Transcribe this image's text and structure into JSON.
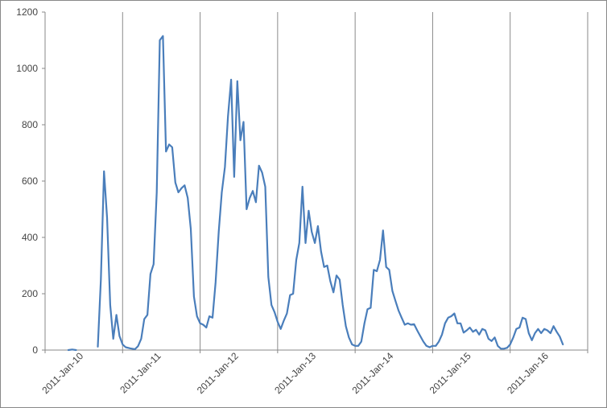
{
  "chart_data": {
    "type": "line",
    "title": "",
    "xlabel": "",
    "ylabel": "",
    "ylim": [
      0,
      1200
    ],
    "y_ticks": [
      "0",
      "200",
      "400",
      "600",
      "800",
      "1000",
      "1200"
    ],
    "x_ticks": [
      "2011-Jan-10",
      "2011-Jan-11",
      "2011-Jan-12",
      "2011-Jan-13",
      "2011-Jan-14",
      "2011-Jan-15",
      "2011-Jan-16"
    ],
    "grid": "vertical",
    "legend": "none",
    "line_color": "#4a7ebb",
    "segments": [
      [
        [
          0.3,
          0
        ],
        [
          0.35,
          2
        ],
        [
          0.4,
          0
        ]
      ],
      [
        [
          0.68,
          12
        ],
        [
          0.72,
          250
        ],
        [
          0.76,
          635
        ],
        [
          0.8,
          470
        ],
        [
          0.84,
          160
        ],
        [
          0.88,
          40
        ],
        [
          0.92,
          125
        ],
        [
          0.96,
          50
        ],
        [
          1.0,
          20
        ],
        [
          1.04,
          10
        ],
        [
          1.1,
          6
        ],
        [
          1.16,
          3
        ],
        [
          1.2,
          14
        ],
        [
          1.24,
          40
        ],
        [
          1.28,
          110
        ],
        [
          1.32,
          125
        ],
        [
          1.36,
          270
        ],
        [
          1.4,
          305
        ],
        [
          1.44,
          560
        ],
        [
          1.48,
          1100
        ],
        [
          1.52,
          1115
        ],
        [
          1.56,
          705
        ],
        [
          1.6,
          730
        ],
        [
          1.64,
          720
        ],
        [
          1.68,
          595
        ],
        [
          1.72,
          560
        ],
        [
          1.76,
          575
        ],
        [
          1.8,
          585
        ],
        [
          1.84,
          540
        ],
        [
          1.88,
          430
        ],
        [
          1.92,
          190
        ],
        [
          1.96,
          120
        ],
        [
          2.0,
          95
        ],
        [
          2.04,
          90
        ],
        [
          2.08,
          80
        ],
        [
          2.12,
          120
        ],
        [
          2.16,
          115
        ],
        [
          2.2,
          240
        ],
        [
          2.24,
          420
        ],
        [
          2.28,
          560
        ],
        [
          2.32,
          650
        ],
        [
          2.36,
          830
        ],
        [
          2.4,
          960
        ],
        [
          2.44,
          615
        ],
        [
          2.48,
          955
        ],
        [
          2.52,
          745
        ],
        [
          2.56,
          810
        ],
        [
          2.6,
          500
        ],
        [
          2.64,
          540
        ],
        [
          2.68,
          565
        ],
        [
          2.72,
          525
        ],
        [
          2.76,
          655
        ],
        [
          2.8,
          630
        ],
        [
          2.84,
          580
        ],
        [
          2.88,
          260
        ],
        [
          2.92,
          160
        ],
        [
          2.96,
          135
        ],
        [
          3.0,
          100
        ],
        [
          3.04,
          75
        ],
        [
          3.08,
          105
        ],
        [
          3.12,
          130
        ],
        [
          3.16,
          195
        ],
        [
          3.2,
          200
        ],
        [
          3.24,
          320
        ],
        [
          3.28,
          380
        ],
        [
          3.32,
          580
        ],
        [
          3.36,
          380
        ],
        [
          3.4,
          495
        ],
        [
          3.44,
          420
        ],
        [
          3.48,
          380
        ],
        [
          3.52,
          440
        ],
        [
          3.56,
          350
        ],
        [
          3.6,
          295
        ],
        [
          3.64,
          300
        ],
        [
          3.68,
          245
        ],
        [
          3.72,
          205
        ],
        [
          3.76,
          265
        ],
        [
          3.8,
          250
        ],
        [
          3.84,
          160
        ],
        [
          3.88,
          85
        ],
        [
          3.92,
          45
        ],
        [
          3.96,
          20
        ],
        [
          4.0,
          15
        ],
        [
          4.04,
          15
        ],
        [
          4.08,
          30
        ],
        [
          4.12,
          95
        ],
        [
          4.16,
          145
        ],
        [
          4.2,
          150
        ],
        [
          4.24,
          285
        ],
        [
          4.28,
          280
        ],
        [
          4.32,
          320
        ],
        [
          4.36,
          425
        ],
        [
          4.4,
          295
        ],
        [
          4.44,
          285
        ],
        [
          4.48,
          210
        ],
        [
          4.52,
          175
        ],
        [
          4.56,
          140
        ],
        [
          4.6,
          115
        ],
        [
          4.64,
          90
        ],
        [
          4.68,
          95
        ],
        [
          4.72,
          90
        ],
        [
          4.76,
          92
        ],
        [
          4.8,
          70
        ],
        [
          4.84,
          50
        ],
        [
          4.88,
          30
        ],
        [
          4.92,
          15
        ],
        [
          4.96,
          10
        ],
        [
          5.0,
          15
        ],
        [
          5.04,
          15
        ],
        [
          5.08,
          30
        ],
        [
          5.12,
          55
        ],
        [
          5.16,
          95
        ],
        [
          5.2,
          115
        ],
        [
          5.24,
          120
        ],
        [
          5.28,
          130
        ],
        [
          5.32,
          95
        ],
        [
          5.36,
          95
        ],
        [
          5.4,
          62
        ],
        [
          5.44,
          70
        ],
        [
          5.48,
          80
        ],
        [
          5.52,
          65
        ],
        [
          5.56,
          72
        ],
        [
          5.6,
          55
        ],
        [
          5.64,
          75
        ],
        [
          5.68,
          70
        ],
        [
          5.72,
          40
        ],
        [
          5.76,
          32
        ],
        [
          5.8,
          45
        ],
        [
          5.84,
          15
        ],
        [
          5.88,
          5
        ],
        [
          5.92,
          5
        ],
        [
          5.96,
          8
        ],
        [
          6.0,
          20
        ],
        [
          6.04,
          45
        ],
        [
          6.08,
          75
        ],
        [
          6.12,
          80
        ],
        [
          6.16,
          115
        ],
        [
          6.2,
          110
        ],
        [
          6.24,
          60
        ],
        [
          6.28,
          35
        ],
        [
          6.32,
          60
        ],
        [
          6.36,
          75
        ],
        [
          6.4,
          60
        ],
        [
          6.44,
          75
        ],
        [
          6.48,
          70
        ],
        [
          6.52,
          60
        ],
        [
          6.56,
          85
        ],
        [
          6.6,
          65
        ],
        [
          6.64,
          48
        ],
        [
          6.68,
          20
        ]
      ]
    ]
  }
}
